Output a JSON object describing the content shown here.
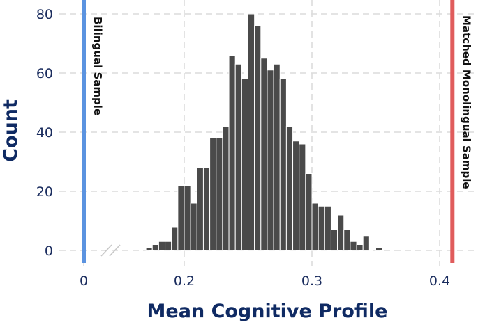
{
  "chart_data": {
    "type": "bar",
    "title": "",
    "xlabel": "Mean Cognitive Profile",
    "ylabel": "Count",
    "xlim": [
      0,
      0.42
    ],
    "ylim": [
      0,
      80
    ],
    "x_ticks": [
      {
        "value": 0,
        "label": "0"
      },
      {
        "value": 0.2,
        "label": "0.2"
      },
      {
        "value": 0.3,
        "label": "0.3"
      },
      {
        "value": 0.4,
        "label": "0.4"
      }
    ],
    "y_ticks": [
      {
        "value": 0,
        "label": "0"
      },
      {
        "value": 20,
        "label": "20"
      },
      {
        "value": 40,
        "label": "40"
      },
      {
        "value": 60,
        "label": "60"
      },
      {
        "value": 80,
        "label": "80"
      }
    ],
    "axis_break": true,
    "grid": true,
    "bin_width": 0.005,
    "bins": [
      {
        "x": 0.17,
        "count": 1
      },
      {
        "x": 0.175,
        "count": 2
      },
      {
        "x": 0.18,
        "count": 3
      },
      {
        "x": 0.185,
        "count": 3
      },
      {
        "x": 0.19,
        "count": 8
      },
      {
        "x": 0.195,
        "count": 22
      },
      {
        "x": 0.2,
        "count": 22
      },
      {
        "x": 0.205,
        "count": 16
      },
      {
        "x": 0.21,
        "count": 28
      },
      {
        "x": 0.215,
        "count": 28
      },
      {
        "x": 0.22,
        "count": 38
      },
      {
        "x": 0.225,
        "count": 38
      },
      {
        "x": 0.23,
        "count": 42
      },
      {
        "x": 0.235,
        "count": 66
      },
      {
        "x": 0.24,
        "count": 63
      },
      {
        "x": 0.245,
        "count": 58
      },
      {
        "x": 0.25,
        "count": 80
      },
      {
        "x": 0.255,
        "count": 76
      },
      {
        "x": 0.26,
        "count": 65
      },
      {
        "x": 0.265,
        "count": 61
      },
      {
        "x": 0.27,
        "count": 63
      },
      {
        "x": 0.275,
        "count": 58
      },
      {
        "x": 0.28,
        "count": 42
      },
      {
        "x": 0.285,
        "count": 37
      },
      {
        "x": 0.29,
        "count": 36
      },
      {
        "x": 0.295,
        "count": 26
      },
      {
        "x": 0.3,
        "count": 16
      },
      {
        "x": 0.305,
        "count": 15
      },
      {
        "x": 0.31,
        "count": 15
      },
      {
        "x": 0.315,
        "count": 7
      },
      {
        "x": 0.32,
        "count": 12
      },
      {
        "x": 0.325,
        "count": 7
      },
      {
        "x": 0.33,
        "count": 3
      },
      {
        "x": 0.335,
        "count": 2
      },
      {
        "x": 0.34,
        "count": 5
      },
      {
        "x": 0.35,
        "count": 1
      }
    ],
    "reference_lines": [
      {
        "x": 0,
        "label": "Bilingual Sample",
        "color": "#5b93e0"
      },
      {
        "x": 0.41,
        "label": "Matched Monolingual Sample",
        "color": "#e05c5c"
      }
    ],
    "bar_color": "#4a4a4a",
    "bar_edge_color": "#ffffff"
  }
}
